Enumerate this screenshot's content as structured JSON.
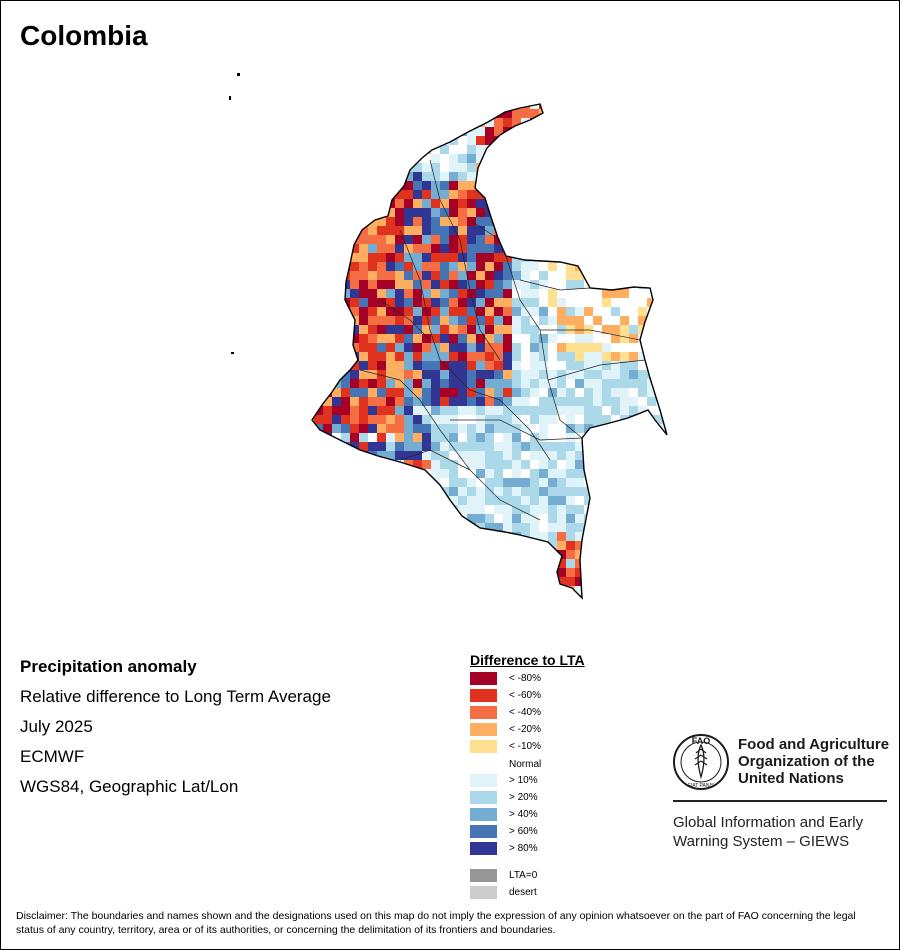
{
  "map_title": "Colombia",
  "info": {
    "heading": "Precipitation anomaly",
    "subtitle": "Relative difference to Long Term Average",
    "period": "July 2025",
    "source": "ECMWF",
    "projection": "WGS84, Geographic Lat/Lon"
  },
  "legend": {
    "title": "Difference to LTA",
    "items": [
      {
        "label": "< -80%",
        "color": "#a50026"
      },
      {
        "label": "< -60%",
        "color": "#e0331f"
      },
      {
        "label": "< -40%",
        "color": "#f46d43"
      },
      {
        "label": "< -20%",
        "color": "#fdae61"
      },
      {
        "label": "< -10%",
        "color": "#fee090"
      },
      {
        "label": "Normal",
        "color": "#ffffff"
      },
      {
        "label": "> 10%",
        "color": "#e0f3f8"
      },
      {
        "label": "> 20%",
        "color": "#abd9e9"
      },
      {
        "label": "> 40%",
        "color": "#74add1"
      },
      {
        "label": "> 60%",
        "color": "#4575b4"
      },
      {
        "label": "> 80%",
        "color": "#313695"
      },
      {
        "label": "LTA=0",
        "color": "#969696"
      },
      {
        "label": "desert",
        "color": "#cccccc"
      }
    ]
  },
  "org": {
    "logo_text": "FAO",
    "logo_motto": "FIAT PANIS",
    "name_lines": [
      "Food and Agriculture",
      "Organization of the",
      "United Nations"
    ],
    "system_lines": [
      "Global Information and Early",
      "Warning System – GIEWS"
    ]
  },
  "disclaimer": "Disclaimer: The boundaries and names shown and the designations used on this map do not imply the expression of any opinion whatsoever on the part of FAO concerning the legal status of any country, territory, area or of its authorities, or concerning the delimitation of its frontiers and boundaries."
}
